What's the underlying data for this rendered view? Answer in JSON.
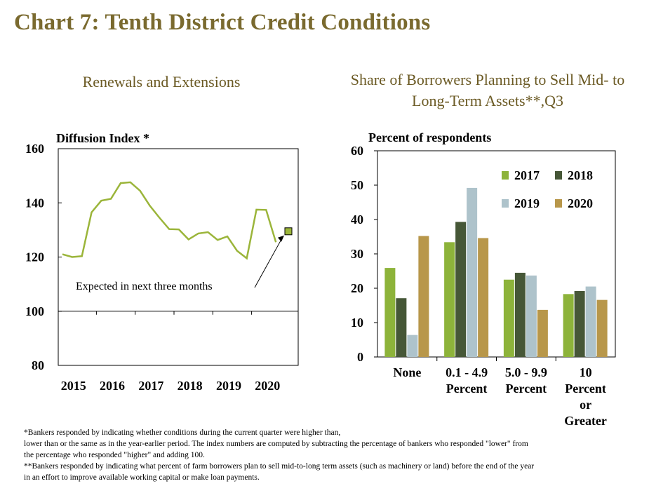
{
  "page_title": "Chart 7: Tenth District Credit Conditions",
  "colors": {
    "title": "#7a6a2f",
    "line": "#9bb53a",
    "c2017": "#8db33a",
    "c2018": "#465737",
    "c2019": "#aec3cb",
    "c2020": "#b8974a"
  },
  "chart_data": [
    {
      "type": "line",
      "title": "Renewals and Extensions",
      "ylabel": "Diffusion Index *",
      "ylim": [
        80,
        160
      ],
      "yticks": [
        80,
        100,
        120,
        140,
        160
      ],
      "xtick_labels": [
        "2015",
        "2016",
        "2017",
        "2018",
        "2019",
        "2020"
      ],
      "x": [
        "2015 Q1",
        "2015 Q2",
        "2015 Q3",
        "2015 Q4",
        "2016 Q1",
        "2016 Q2",
        "2016 Q3",
        "2016 Q4",
        "2017 Q1",
        "2017 Q2",
        "2017 Q3",
        "2017 Q4",
        "2018 Q1",
        "2018 Q2",
        "2018 Q3",
        "2018 Q4",
        "2019 Q1",
        "2019 Q2",
        "2019 Q3",
        "2019 Q4",
        "2020 Q1",
        "2020 Q2",
        "2020 Q3"
      ],
      "series": [
        {
          "values": [
            121,
            120,
            120.3,
            136.5,
            140.8,
            141.5,
            147.3,
            147.6,
            144.5,
            139,
            134.5,
            130.3,
            130.2,
            126.5,
            128.7,
            129.2,
            126.3,
            127.6,
            122.3,
            119.5,
            137.5,
            137.4,
            125.5
          ]
        }
      ],
      "expected": {
        "x": "2020 Q4",
        "value": 129.5
      },
      "annotation": "Expected in next three months",
      "grid": false
    },
    {
      "type": "bar",
      "title": "Share of Borrowers Planning to Sell Mid- to Long-Term Assets**,Q3",
      "ylabel": "Percent of respondents",
      "ylim": [
        0,
        60
      ],
      "yticks": [
        0,
        10,
        20,
        30,
        40,
        50,
        60
      ],
      "categories": [
        [
          "None"
        ],
        [
          "0.1 - 4.9",
          "Percent"
        ],
        [
          "5.0 - 9.9",
          "Percent"
        ],
        [
          "10",
          "Percent",
          "or",
          "Greater"
        ]
      ],
      "series": [
        {
          "name": "2017",
          "values": [
            25.9,
            33.4,
            22.5,
            18.3
          ]
        },
        {
          "name": "2018",
          "values": [
            17.1,
            39.3,
            24.5,
            19.2
          ]
        },
        {
          "name": "2019",
          "values": [
            6.4,
            49.2,
            23.7,
            20.5
          ]
        },
        {
          "name": "2020",
          "values": [
            35.2,
            34.6,
            13.7,
            16.6
          ]
        }
      ],
      "legend": "top-right",
      "grid": false
    }
  ],
  "footnotes": {
    "note1_line1": "*Bankers responded by indicating whether conditions during the current quarter were higher than,",
    "note1_line2": "lower than or the same as in the year-earlier period. The index numbers are computed by subtracting the percentage of bankers who responded \"lower\" from",
    "note1_line3": "the percentage who responded \"higher\" and adding 100.",
    "note2_line1": "**Bankers responded by indicating what percent of farm borrowers plan to sell mid-to-long term assets (such as machinery or land) before the end of the year",
    "note2_line2": "in an effort to improve available working capital or make loan payments."
  }
}
